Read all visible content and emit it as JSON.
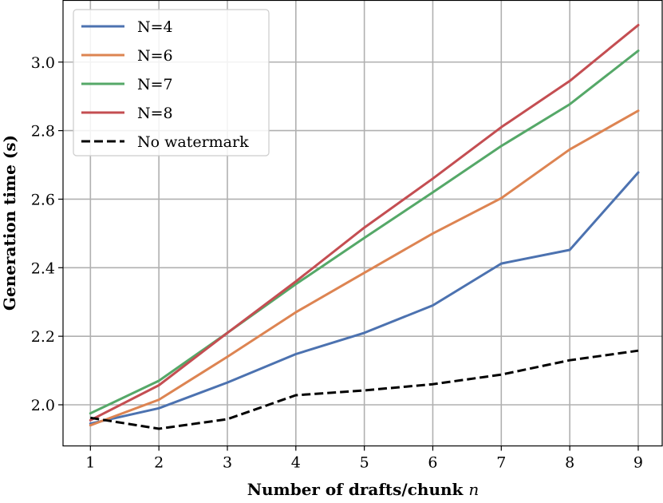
{
  "chart_data": {
    "type": "line",
    "title": "",
    "xlabel": "Number of drafts/chunk",
    "xlabel_var": "n",
    "ylabel": "Generation time (s)",
    "x": [
      1,
      2,
      3,
      4,
      5,
      6,
      7,
      8,
      9
    ],
    "xlim": [
      0.6,
      9.35
    ],
    "ylim": [
      1.88,
      3.18
    ],
    "xticks": [
      "1",
      "2",
      "3",
      "4",
      "5",
      "6",
      "7",
      "8",
      "9"
    ],
    "yticks": [
      {
        "value": 2.0,
        "label": "2.0"
      },
      {
        "value": 2.2,
        "label": "2.2"
      },
      {
        "value": 2.4,
        "label": "2.4"
      },
      {
        "value": 2.6,
        "label": "2.6"
      },
      {
        "value": 2.8,
        "label": "2.8"
      },
      {
        "value": 3.0,
        "label": "3.0"
      }
    ],
    "grid": true,
    "legend_position": "top-left",
    "series": [
      {
        "name": "N=4",
        "color": "#4c72b0",
        "style": "solid",
        "values": [
          1.945,
          1.99,
          2.065,
          2.148,
          2.21,
          2.29,
          2.412,
          2.452,
          2.678
        ]
      },
      {
        "name": "N=6",
        "color": "#dd8452",
        "style": "solid",
        "values": [
          1.94,
          2.015,
          2.14,
          2.27,
          2.385,
          2.5,
          2.603,
          2.745,
          2.858
        ]
      },
      {
        "name": "N=7",
        "color": "#55a868",
        "style": "solid",
        "values": [
          1.975,
          2.07,
          2.21,
          2.352,
          2.487,
          2.62,
          2.755,
          2.877,
          3.033
        ]
      },
      {
        "name": "N=8",
        "color": "#c44e52",
        "style": "solid",
        "values": [
          1.955,
          2.057,
          2.21,
          2.36,
          2.517,
          2.66,
          2.81,
          2.945,
          3.108
        ]
      },
      {
        "name": "No watermark",
        "color": "#000000",
        "style": "dashed",
        "values": [
          1.962,
          1.93,
          1.958,
          2.028,
          2.042,
          2.06,
          2.088,
          2.13,
          2.158
        ]
      }
    ]
  }
}
